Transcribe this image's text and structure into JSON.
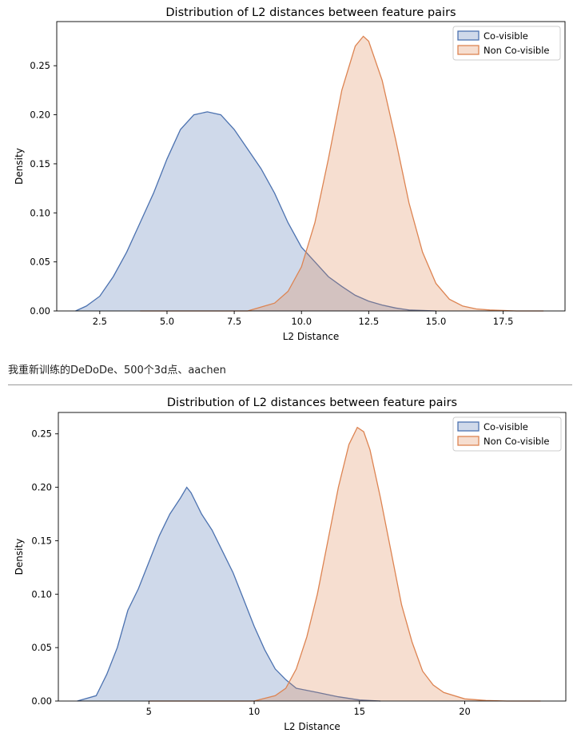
{
  "caption": "我重新训练的DeDoDe、500个3d点、aachen",
  "colors": {
    "co_visible": "#4c72b0",
    "non_co_visible": "#dd8452"
  },
  "chart_data": [
    {
      "type": "area",
      "title": "Distribution of L2 distances between feature pairs",
      "xlabel": "L2 Distance",
      "ylabel": "Density",
      "xlim": [
        0.9,
        19.8
      ],
      "ylim": [
        0,
        0.295
      ],
      "xticks": [
        2.5,
        5.0,
        7.5,
        10.0,
        12.5,
        15.0,
        17.5
      ],
      "xtick_labels": [
        "2.5",
        "5.0",
        "7.5",
        "10.0",
        "12.5",
        "15.0",
        "17.5"
      ],
      "yticks": [
        0.0,
        0.05,
        0.1,
        0.15,
        0.2,
        0.25
      ],
      "ytick_labels": [
        "0.00",
        "0.05",
        "0.10",
        "0.15",
        "0.20",
        "0.25"
      ],
      "legend_position": "top-right",
      "series": [
        {
          "name": "Co-visible",
          "x": [
            1.6,
            2.0,
            2.5,
            3.0,
            3.5,
            4.0,
            4.5,
            5.0,
            5.5,
            6.0,
            6.5,
            7.0,
            7.5,
            8.0,
            8.5,
            9.0,
            9.5,
            10.0,
            10.5,
            11.0,
            11.5,
            12.0,
            12.5,
            13.0,
            13.5,
            14.0,
            14.5,
            15.0
          ],
          "y": [
            0.0,
            0.005,
            0.015,
            0.035,
            0.06,
            0.09,
            0.12,
            0.155,
            0.185,
            0.2,
            0.203,
            0.2,
            0.185,
            0.165,
            0.145,
            0.12,
            0.09,
            0.065,
            0.05,
            0.035,
            0.025,
            0.016,
            0.01,
            0.006,
            0.003,
            0.001,
            0.0005,
            0.0
          ]
        },
        {
          "name": "Non Co-visible",
          "x": [
            4.0,
            8.0,
            9.0,
            9.5,
            10.0,
            10.5,
            11.0,
            11.5,
            12.0,
            12.3,
            12.5,
            13.0,
            13.5,
            14.0,
            14.5,
            15.0,
            15.5,
            16.0,
            16.5,
            17.0,
            17.5,
            18.0,
            19.0
          ],
          "y": [
            0.0,
            0.0,
            0.008,
            0.02,
            0.045,
            0.09,
            0.155,
            0.225,
            0.27,
            0.28,
            0.275,
            0.235,
            0.175,
            0.11,
            0.06,
            0.028,
            0.012,
            0.005,
            0.002,
            0.001,
            0.0005,
            0.0,
            0.0
          ]
        }
      ]
    },
    {
      "type": "area",
      "title": "Distribution of L2 distances between feature pairs",
      "xlabel": "L2 Distance",
      "ylabel": "Density",
      "xlim": [
        0.7,
        24.8
      ],
      "ylim": [
        0,
        0.27
      ],
      "xticks": [
        5,
        10,
        15,
        20
      ],
      "xtick_labels": [
        "5",
        "10",
        "15",
        "20"
      ],
      "yticks": [
        0.0,
        0.05,
        0.1,
        0.15,
        0.2,
        0.25
      ],
      "ytick_labels": [
        "0.00",
        "0.05",
        "0.10",
        "0.15",
        "0.20",
        "0.25"
      ],
      "legend_position": "top-right",
      "series": [
        {
          "name": "Co-visible",
          "x": [
            1.6,
            2.5,
            3.0,
            3.5,
            4.0,
            4.5,
            5.0,
            5.5,
            6.0,
            6.5,
            6.8,
            7.0,
            7.5,
            8.0,
            8.5,
            9.0,
            9.5,
            10.0,
            10.5,
            11.0,
            11.5,
            12.0,
            12.5,
            13.0,
            13.5,
            14.0,
            15.0,
            16.0
          ],
          "y": [
            0.0,
            0.005,
            0.025,
            0.05,
            0.085,
            0.105,
            0.13,
            0.155,
            0.175,
            0.19,
            0.2,
            0.195,
            0.175,
            0.16,
            0.14,
            0.12,
            0.095,
            0.07,
            0.048,
            0.03,
            0.02,
            0.012,
            0.01,
            0.008,
            0.006,
            0.004,
            0.001,
            0.0
          ]
        },
        {
          "name": "Non Co-visible",
          "x": [
            5.0,
            10.0,
            11.0,
            11.5,
            12.0,
            12.5,
            13.0,
            13.5,
            14.0,
            14.5,
            14.9,
            15.2,
            15.5,
            16.0,
            16.5,
            17.0,
            17.5,
            18.0,
            18.5,
            19.0,
            20.0,
            21.0,
            22.0,
            23.6
          ],
          "y": [
            0.0,
            0.0,
            0.005,
            0.012,
            0.03,
            0.06,
            0.1,
            0.15,
            0.2,
            0.24,
            0.256,
            0.252,
            0.235,
            0.19,
            0.14,
            0.09,
            0.055,
            0.028,
            0.015,
            0.008,
            0.002,
            0.0005,
            0.0,
            0.0
          ]
        }
      ]
    }
  ]
}
